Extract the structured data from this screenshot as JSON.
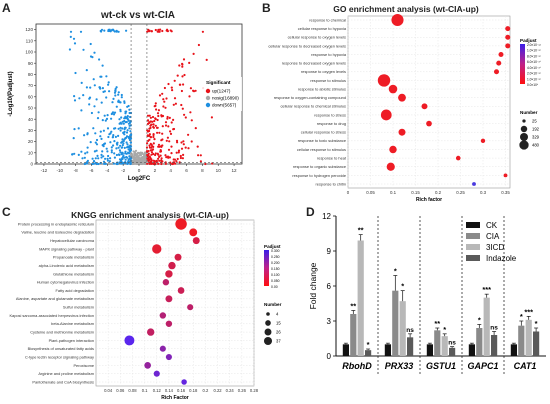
{
  "panels": {
    "a": {
      "label": "A"
    },
    "b": {
      "label": "B"
    },
    "c": {
      "label": "C"
    },
    "d": {
      "label": "D"
    }
  },
  "chart_data": [
    {
      "type": "scatter",
      "panel": "A",
      "title": "wt-ck vs wt-CIA",
      "xlabel": "Log2FC",
      "ylabel": "-Log10(Padjust)",
      "xlim": [
        -13,
        13
      ],
      "ylim": [
        0,
        125
      ],
      "xticks": [
        -12,
        -10,
        -8,
        -6,
        -4,
        -2,
        0,
        2,
        4,
        6,
        8,
        10,
        12
      ],
      "yticks": [
        0,
        10,
        20,
        30,
        40,
        50,
        60,
        70,
        80,
        90,
        100,
        110,
        120
      ],
      "thresholds": {
        "log2fc": [
          -1,
          1
        ],
        "neg_log10_padj": 1.3
      },
      "legend_title": "Significant",
      "legend": [
        {
          "label": "up(1247)",
          "color": "#e8131a"
        },
        {
          "label": "nosig(16890)",
          "color": "#a9a9a9"
        },
        {
          "label": "down(5657)",
          "color": "#1e8fe0"
        }
      ],
      "series": [
        {
          "name": "up",
          "count": 1247
        },
        {
          "name": "nosig",
          "count": 16890
        },
        {
          "name": "down",
          "count": 5657
        }
      ]
    },
    {
      "type": "scatter",
      "panel": "B",
      "title": "GO enrichment analysis  (wt-CIA-up)",
      "xlabel": "Rich factor",
      "xlim": [
        0,
        0.36
      ],
      "xticks": [
        0,
        0.05,
        0.1,
        0.15,
        0.2,
        0.25,
        0.3,
        0.35
      ],
      "xtick_labels": [
        "0",
        "0.05",
        "0.1",
        "0.15",
        "0.2",
        "0.25",
        "0.3",
        "0.35"
      ],
      "categories": [
        "response to chemical",
        "cellular response to hypoxia",
        "cellular response to oxygen levels",
        "cellular response to decreased oxygen levels",
        "response to hypoxia",
        "response to decreased oxygen levels",
        "response to oxygen levels",
        "response to stimulus",
        "response to abiotic stimulus",
        "response to oxygen-containing compound",
        "cellular response to chemical stimulus",
        "response to stress",
        "response to drug",
        "cellular response to stress",
        "response to toxic substance",
        "cellular response to stimulus",
        "response to heat",
        "response to organic substance",
        "response to hydrogen peroxide",
        "response to chitin"
      ],
      "x": [
        0.11,
        0.355,
        0.355,
        0.355,
        0.34,
        0.335,
        0.33,
        0.08,
        0.1,
        0.12,
        0.17,
        0.085,
        0.18,
        0.12,
        0.3,
        0.1,
        0.245,
        0.095,
        0.35,
        0.28
      ],
      "size": [
        450,
        40,
        40,
        40,
        40,
        40,
        40,
        480,
        190,
        150,
        70,
        340,
        60,
        110,
        25,
        130,
        30,
        170,
        15,
        15
      ],
      "padjust": [
        0.0001,
        0.0001,
        0.0001,
        0.0001,
        0.0001,
        0.0001,
        0.0001,
        0.0001,
        0.0001,
        0.0001,
        0.0001,
        0.0001,
        0.0001,
        0.0001,
        0.0001,
        0.0001,
        0.0001,
        0.0001,
        0.0001,
        0.0006
      ],
      "color_legend_title": "Padjust",
      "color_ticks": [
        "2.0×10⁻¹²",
        "1.0×10⁻¹⁰",
        "8.0×10⁻¹⁰",
        "6.0×10⁻¹⁰",
        "4.0×10⁻¹⁰",
        "2.0×10⁻¹⁰",
        "1.0×10⁻¹⁰",
        "0.0×10⁰"
      ],
      "size_legend_title": "Number",
      "size_legend": [
        25,
        192,
        329,
        480
      ]
    },
    {
      "type": "scatter",
      "panel": "C",
      "title": "KNGG enrichment analysis  (wt-CIA-up)",
      "xlabel": "Rich Factor",
      "xlim": [
        0.02,
        0.28
      ],
      "xticks": [
        0.04,
        0.06,
        0.08,
        0.1,
        0.12,
        0.14,
        0.16,
        0.18,
        0.2,
        0.22,
        0.24,
        0.26,
        0.28
      ],
      "categories": [
        "Protein processing in endoplasmic reticulum",
        "Valine, leucine and isoleucine degradation",
        "Hepatocellular carcinoma",
        "MAPK signaling pathway - plant",
        "Propanoate metabolism",
        "alpha-Linolenic acid metabolism",
        "Glutathione metabolism",
        "Human cytomegalovirus infection",
        "Fatty acid degradation",
        "Alanine, aspartate and glutamate metabolism",
        "Sulfur metabolism",
        "Kaposi sarcoma-associated herpesvirus infection",
        "beta-Alanine metabolism",
        "Cysteine and methionine metabolism",
        "Plant-pathogen interaction",
        "Biosynthesis of unsaturated fatty acids",
        "C-type lectin receptor signaling pathway",
        "Peroxisome",
        "Arginine and proline metabolism",
        "Pantothenate and CoA biosynthesis"
      ],
      "x": [
        0.16,
        0.18,
        0.185,
        0.12,
        0.155,
        0.145,
        0.14,
        0.135,
        0.16,
        0.14,
        0.175,
        0.13,
        0.14,
        0.11,
        0.075,
        0.13,
        0.14,
        0.105,
        0.12,
        0.165
      ],
      "size": [
        37,
        14,
        10,
        22,
        10,
        12,
        12,
        8,
        9,
        10,
        7,
        8,
        8,
        12,
        26,
        7,
        7,
        9,
        7,
        5
      ],
      "padjust": [
        0.0,
        0.0,
        0.05,
        0.02,
        0.05,
        0.06,
        0.05,
        0.1,
        0.07,
        0.08,
        0.1,
        0.12,
        0.1,
        0.09,
        0.3,
        0.2,
        0.22,
        0.18,
        0.26,
        0.28
      ],
      "color_legend_title": "Padjust",
      "color_ticks": [
        "0.300",
        "0.250",
        "0.200",
        "0.150",
        "0.100",
        "0.050",
        "0.00"
      ],
      "size_legend_title": "Number",
      "size_legend": [
        4,
        15,
        26,
        37
      ]
    },
    {
      "type": "bar",
      "panel": "D",
      "ylabel": "Fold change",
      "ylim": [
        0,
        12
      ],
      "yticks": [
        0,
        3,
        6,
        9,
        12
      ],
      "categories": [
        "RbohD",
        "PRX33",
        "GSTU1",
        "GAPC1",
        "CAT1"
      ],
      "series": [
        {
          "name": "CK",
          "color": "#111111",
          "values": [
            1,
            1,
            1,
            1,
            1
          ],
          "errors": [
            0.1,
            0.1,
            0.1,
            0.1,
            0.1
          ],
          "sig": [
            "",
            "",
            "",
            "",
            ""
          ]
        },
        {
          "name": "CIA",
          "color": "#8a8a8a",
          "values": [
            3.6,
            5.6,
            2.2,
            2.4,
            2.6
          ],
          "errors": [
            0.3,
            1.3,
            0.2,
            0.3,
            0.4
          ],
          "sig": [
            "**",
            "*",
            "**",
            "*",
            "*"
          ]
        },
        {
          "name": "3ICD",
          "color": "#b8b8b8",
          "values": [
            9.9,
            4.7,
            1.7,
            5.0,
            3.1
          ],
          "errors": [
            0.5,
            0.9,
            0.2,
            0.3,
            0.3
          ],
          "sig": [
            "**",
            "*",
            "*",
            "***",
            "***"
          ]
        },
        {
          "name": "Indazole",
          "color": "#5a5a5a",
          "values": [
            0.5,
            1.6,
            0.7,
            1.8,
            2.1
          ],
          "errors": [
            0.1,
            0.3,
            0.1,
            0.3,
            0.3
          ],
          "sig": [
            "*",
            "ns",
            "ns",
            "ns",
            "*"
          ]
        }
      ]
    }
  ]
}
